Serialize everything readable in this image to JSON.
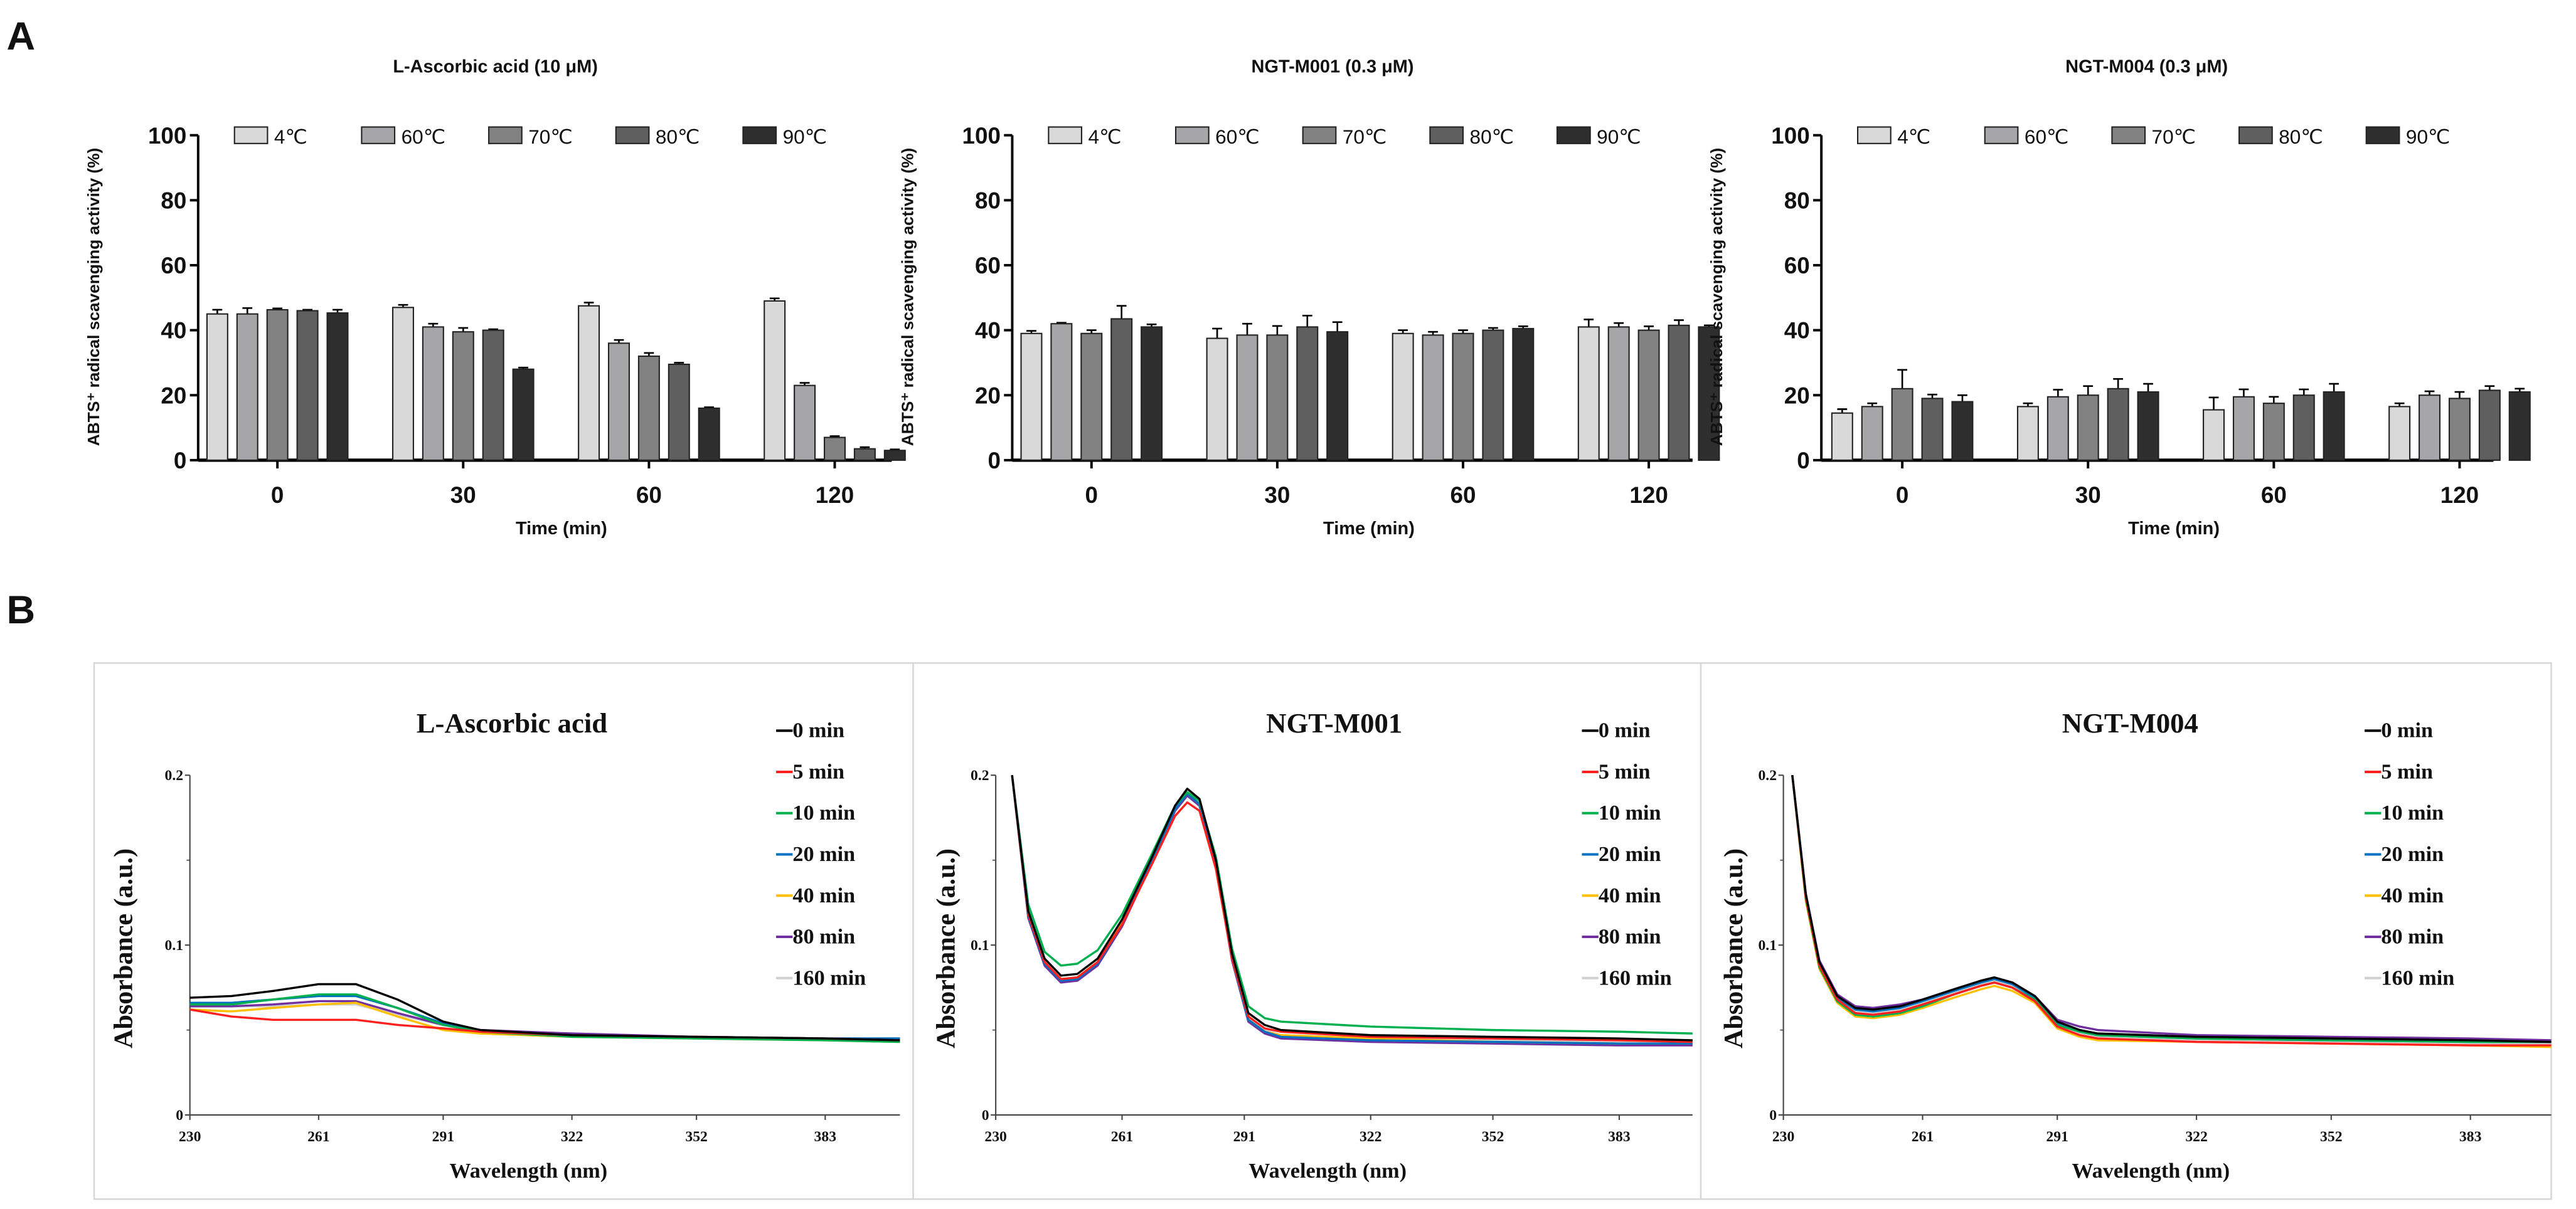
{
  "panel_labels": {
    "a": "A",
    "b": "B"
  },
  "chart_data": [
    {
      "type": "bar",
      "panel": "A",
      "title": "L-Ascorbic acid (10 μM)",
      "xlabel": "Time (min)",
      "ylabel": "ABTS⁺ radical scavenging activity (%)",
      "ylim": [
        0,
        100
      ],
      "yticks": [
        "0",
        "20",
        "40",
        "60",
        "80",
        "100"
      ],
      "categories": [
        "0",
        "30",
        "60",
        "120"
      ],
      "legend_position": "top",
      "series": [
        {
          "name": "4℃",
          "color": "#d9d9d9",
          "values": [
            45,
            47,
            47.5,
            49
          ],
          "errors": [
            1.3,
            0.8,
            1,
            0.8
          ]
        },
        {
          "name": "60℃",
          "color": "#a6a6a8",
          "values": [
            45,
            41,
            36,
            23
          ],
          "errors": [
            1.8,
            1,
            1,
            0.8
          ]
        },
        {
          "name": "70℃",
          "color": "#828282",
          "values": [
            46.3,
            39.5,
            32,
            7
          ],
          "errors": [
            0.4,
            1.2,
            1,
            0.4
          ]
        },
        {
          "name": "80℃",
          "color": "#5f5f5f",
          "values": [
            46,
            40,
            29.5,
            3.5
          ],
          "errors": [
            0.3,
            0.3,
            0.5,
            0.5
          ]
        },
        {
          "name": "90℃",
          "color": "#2e2e2e",
          "values": [
            45.3,
            28,
            16,
            3
          ],
          "errors": [
            1,
            0.5,
            0.3,
            0.3
          ]
        }
      ]
    },
    {
      "type": "bar",
      "panel": "A",
      "title": "NGT-M001 (0.3 μM)",
      "xlabel": "Time (min)",
      "ylabel": "ABTS⁺ radical scavenging activity (%)",
      "ylim": [
        0,
        100
      ],
      "yticks": [
        "0",
        "20",
        "40",
        "60",
        "80",
        "100"
      ],
      "categories": [
        "0",
        "30",
        "60",
        "120"
      ],
      "legend_position": "top",
      "series": [
        {
          "name": "4℃",
          "color": "#d9d9d9",
          "values": [
            39,
            37.5,
            39,
            41
          ],
          "errors": [
            0.8,
            3,
            1,
            2.3
          ]
        },
        {
          "name": "60℃",
          "color": "#a6a6a8",
          "values": [
            42,
            38.5,
            38.5,
            41
          ],
          "errors": [
            0.3,
            3.5,
            1,
            1.2
          ]
        },
        {
          "name": "70℃",
          "color": "#828282",
          "values": [
            39,
            38.5,
            39,
            40
          ],
          "errors": [
            1,
            2.8,
            1,
            1.2
          ]
        },
        {
          "name": "80℃",
          "color": "#5f5f5f",
          "values": [
            43.5,
            41,
            40,
            41.5
          ],
          "errors": [
            4,
            3.5,
            0.7,
            1.6
          ]
        },
        {
          "name": "90℃",
          "color": "#2e2e2e",
          "values": [
            41,
            39.5,
            40.5,
            41
          ],
          "errors": [
            0.8,
            3,
            0.7,
            0.5
          ]
        }
      ]
    },
    {
      "type": "bar",
      "panel": "A",
      "title": "NGT-M004 (0.3 μM)",
      "xlabel": "Time (min)",
      "ylabel": "ABTS⁺ radical scavenging activity (%)",
      "ylim": [
        0,
        100
      ],
      "yticks": [
        "0",
        "20",
        "40",
        "60",
        "80",
        "100"
      ],
      "categories": [
        "0",
        "30",
        "60",
        "120"
      ],
      "legend_position": "top",
      "series": [
        {
          "name": "4℃",
          "color": "#d9d9d9",
          "values": [
            14.5,
            16.5,
            15.5,
            16.5
          ],
          "errors": [
            1.2,
            1,
            3.8,
            1
          ]
        },
        {
          "name": "60℃",
          "color": "#a6a6a8",
          "values": [
            16.5,
            19.5,
            19.5,
            20
          ],
          "errors": [
            1,
            2.2,
            2.3,
            1.2
          ]
        },
        {
          "name": "70℃",
          "color": "#828282",
          "values": [
            22,
            20,
            17.5,
            19
          ],
          "errors": [
            5.8,
            2.8,
            2,
            2
          ]
        },
        {
          "name": "80℃",
          "color": "#5f5f5f",
          "values": [
            19,
            22,
            20,
            21.5
          ],
          "errors": [
            1.2,
            3,
            1.8,
            1.3
          ]
        },
        {
          "name": "90℃",
          "color": "#2e2e2e",
          "values": [
            18,
            21,
            21,
            21
          ],
          "errors": [
            2,
            2.5,
            2.5,
            1
          ]
        }
      ]
    },
    {
      "type": "line",
      "panel": "B",
      "title": "L-Ascorbic acid",
      "xlabel": "Wavelength (nm)",
      "ylabel": "Absorbance (a.u.)",
      "xlim": [
        230,
        401
      ],
      "ylim": [
        0,
        0.2
      ],
      "xticks": [
        "230",
        "261",
        "291",
        "322",
        "352",
        "383"
      ],
      "yticks": [
        "0",
        "0.1",
        "0.2"
      ],
      "legend_position": "right",
      "x": [
        230,
        240,
        250,
        261,
        270,
        280,
        291,
        300,
        322,
        352,
        383,
        401
      ],
      "series": [
        {
          "name": "0 min",
          "color": "#000000",
          "values": [
            0.069,
            0.07,
            0.073,
            0.077,
            0.077,
            0.068,
            0.055,
            0.05,
            0.047,
            0.046,
            0.045,
            0.044
          ]
        },
        {
          "name": "5 min",
          "color": "#ff2020",
          "values": [
            0.062,
            0.058,
            0.056,
            0.056,
            0.056,
            0.053,
            0.051,
            0.049,
            0.047,
            0.046,
            0.045,
            0.044
          ]
        },
        {
          "name": "10 min",
          "color": "#00b050",
          "values": [
            0.065,
            0.065,
            0.068,
            0.071,
            0.071,
            0.063,
            0.053,
            0.049,
            0.046,
            0.045,
            0.044,
            0.043
          ]
        },
        {
          "name": "20 min",
          "color": "#0070c0",
          "values": [
            0.066,
            0.066,
            0.068,
            0.07,
            0.07,
            0.063,
            0.054,
            0.049,
            0.047,
            0.046,
            0.045,
            0.045
          ]
        },
        {
          "name": "40 min",
          "color": "#ffc000",
          "values": [
            0.062,
            0.061,
            0.063,
            0.065,
            0.066,
            0.058,
            0.05,
            0.048,
            0.046,
            0.045,
            0.044,
            0.043
          ]
        },
        {
          "name": "80 min",
          "color": "#7030a0",
          "values": [
            0.064,
            0.064,
            0.065,
            0.067,
            0.067,
            0.06,
            0.053,
            0.05,
            0.048,
            0.046,
            0.045,
            0.045
          ]
        },
        {
          "name": "160 min",
          "color": "#d0d0d0",
          "values": [
            0.065,
            0.064,
            0.064,
            0.065,
            0.065,
            0.059,
            0.053,
            0.05,
            0.048,
            0.046,
            0.045,
            0.045
          ]
        }
      ]
    },
    {
      "type": "line",
      "panel": "B",
      "title": "NGT-M001",
      "xlabel": "Wavelength (nm)",
      "ylabel": "Absorbance (a.u.)",
      "xlim": [
        230,
        401
      ],
      "ylim": [
        0,
        0.2
      ],
      "xticks": [
        "230",
        "261",
        "291",
        "322",
        "352",
        "383"
      ],
      "yticks": [
        "0",
        "0.1",
        "0.2"
      ],
      "legend_position": "right",
      "x": [
        234,
        238,
        242,
        246,
        250,
        255,
        261,
        268,
        274,
        277,
        280,
        284,
        288,
        292,
        296,
        300,
        322,
        352,
        383,
        401
      ],
      "series": [
        {
          "name": "0 min",
          "color": "#000000",
          "values": [
            0.2,
            0.12,
            0.092,
            0.082,
            0.083,
            0.092,
            0.115,
            0.15,
            0.182,
            0.192,
            0.186,
            0.15,
            0.095,
            0.06,
            0.053,
            0.05,
            0.047,
            0.046,
            0.045,
            0.044
          ]
        },
        {
          "name": "5 min",
          "color": "#ff2020",
          "values": [
            0.2,
            0.118,
            0.09,
            0.08,
            0.081,
            0.09,
            0.112,
            0.146,
            0.176,
            0.184,
            0.179,
            0.145,
            0.092,
            0.058,
            0.051,
            0.049,
            0.046,
            0.045,
            0.044,
            0.043
          ]
        },
        {
          "name": "10 min",
          "color": "#00b050",
          "values": [
            0.2,
            0.124,
            0.096,
            0.088,
            0.089,
            0.097,
            0.118,
            0.152,
            0.182,
            0.19,
            0.185,
            0.152,
            0.098,
            0.064,
            0.057,
            0.055,
            0.052,
            0.05,
            0.049,
            0.048
          ]
        },
        {
          "name": "20 min",
          "color": "#0070c0",
          "values": [
            0.2,
            0.117,
            0.089,
            0.079,
            0.08,
            0.089,
            0.112,
            0.148,
            0.18,
            0.189,
            0.183,
            0.148,
            0.092,
            0.056,
            0.049,
            0.046,
            0.044,
            0.043,
            0.042,
            0.042
          ]
        },
        {
          "name": "40 min",
          "color": "#ffc000",
          "values": [
            0.2,
            0.118,
            0.09,
            0.08,
            0.081,
            0.09,
            0.113,
            0.148,
            0.18,
            0.189,
            0.183,
            0.148,
            0.092,
            0.056,
            0.049,
            0.047,
            0.045,
            0.043,
            0.042,
            0.042
          ]
        },
        {
          "name": "80 min",
          "color": "#7030a0",
          "values": [
            0.2,
            0.116,
            0.088,
            0.078,
            0.079,
            0.088,
            0.111,
            0.147,
            0.179,
            0.188,
            0.182,
            0.147,
            0.091,
            0.055,
            0.048,
            0.045,
            0.043,
            0.042,
            0.041,
            0.041
          ]
        },
        {
          "name": "160 min",
          "color": "#d0d0d0",
          "values": [
            0.2,
            0.118,
            0.09,
            0.08,
            0.081,
            0.09,
            0.112,
            0.147,
            0.179,
            0.188,
            0.182,
            0.148,
            0.093,
            0.057,
            0.05,
            0.047,
            0.045,
            0.044,
            0.043,
            0.043
          ]
        }
      ]
    },
    {
      "type": "line",
      "panel": "B",
      "title": "NGT-M004",
      "xlabel": "Wavelength (nm)",
      "ylabel": "Absorbance (a.u.)",
      "xlim": [
        230,
        401
      ],
      "ylim": [
        0,
        0.2
      ],
      "xticks": [
        "230",
        "261",
        "291",
        "322",
        "352",
        "383"
      ],
      "yticks": [
        "0",
        "0.1",
        "0.2"
      ],
      "legend_position": "right",
      "x": [
        232,
        235,
        238,
        242,
        246,
        250,
        256,
        261,
        268,
        274,
        277,
        281,
        286,
        291,
        296,
        300,
        322,
        352,
        383,
        401
      ],
      "series": [
        {
          "name": "0 min",
          "color": "#000000",
          "values": [
            0.2,
            0.13,
            0.09,
            0.07,
            0.063,
            0.062,
            0.064,
            0.068,
            0.074,
            0.079,
            0.081,
            0.078,
            0.07,
            0.055,
            0.05,
            0.048,
            0.046,
            0.045,
            0.044,
            0.043
          ]
        },
        {
          "name": "5 min",
          "color": "#ff2020",
          "values": [
            0.2,
            0.128,
            0.088,
            0.068,
            0.06,
            0.059,
            0.061,
            0.065,
            0.071,
            0.076,
            0.078,
            0.075,
            0.067,
            0.052,
            0.047,
            0.045,
            0.043,
            0.042,
            0.041,
            0.041
          ]
        },
        {
          "name": "10 min",
          "color": "#00b050",
          "values": [
            0.2,
            0.127,
            0.087,
            0.067,
            0.059,
            0.058,
            0.06,
            0.064,
            0.071,
            0.076,
            0.078,
            0.075,
            0.068,
            0.053,
            0.049,
            0.047,
            0.045,
            0.044,
            0.043,
            0.043
          ]
        },
        {
          "name": "20 min",
          "color": "#0070c0",
          "values": [
            0.2,
            0.129,
            0.089,
            0.069,
            0.062,
            0.061,
            0.063,
            0.067,
            0.073,
            0.078,
            0.08,
            0.077,
            0.069,
            0.054,
            0.049,
            0.047,
            0.045,
            0.044,
            0.043,
            0.043
          ]
        },
        {
          "name": "40 min",
          "color": "#ffc000",
          "values": [
            0.2,
            0.126,
            0.086,
            0.066,
            0.058,
            0.057,
            0.059,
            0.063,
            0.069,
            0.074,
            0.076,
            0.073,
            0.066,
            0.051,
            0.046,
            0.044,
            0.043,
            0.042,
            0.041,
            0.04
          ]
        },
        {
          "name": "80 min",
          "color": "#7030a0",
          "values": [
            0.2,
            0.13,
            0.091,
            0.071,
            0.064,
            0.063,
            0.065,
            0.068,
            0.074,
            0.079,
            0.081,
            0.078,
            0.07,
            0.056,
            0.052,
            0.05,
            0.047,
            0.046,
            0.045,
            0.044
          ]
        },
        {
          "name": "160 min",
          "color": "#d0d0d0",
          "values": [
            0.2,
            0.128,
            0.088,
            0.068,
            0.061,
            0.06,
            0.062,
            0.066,
            0.072,
            0.077,
            0.079,
            0.076,
            0.068,
            0.053,
            0.048,
            0.046,
            0.044,
            0.043,
            0.042,
            0.042
          ]
        }
      ]
    }
  ]
}
